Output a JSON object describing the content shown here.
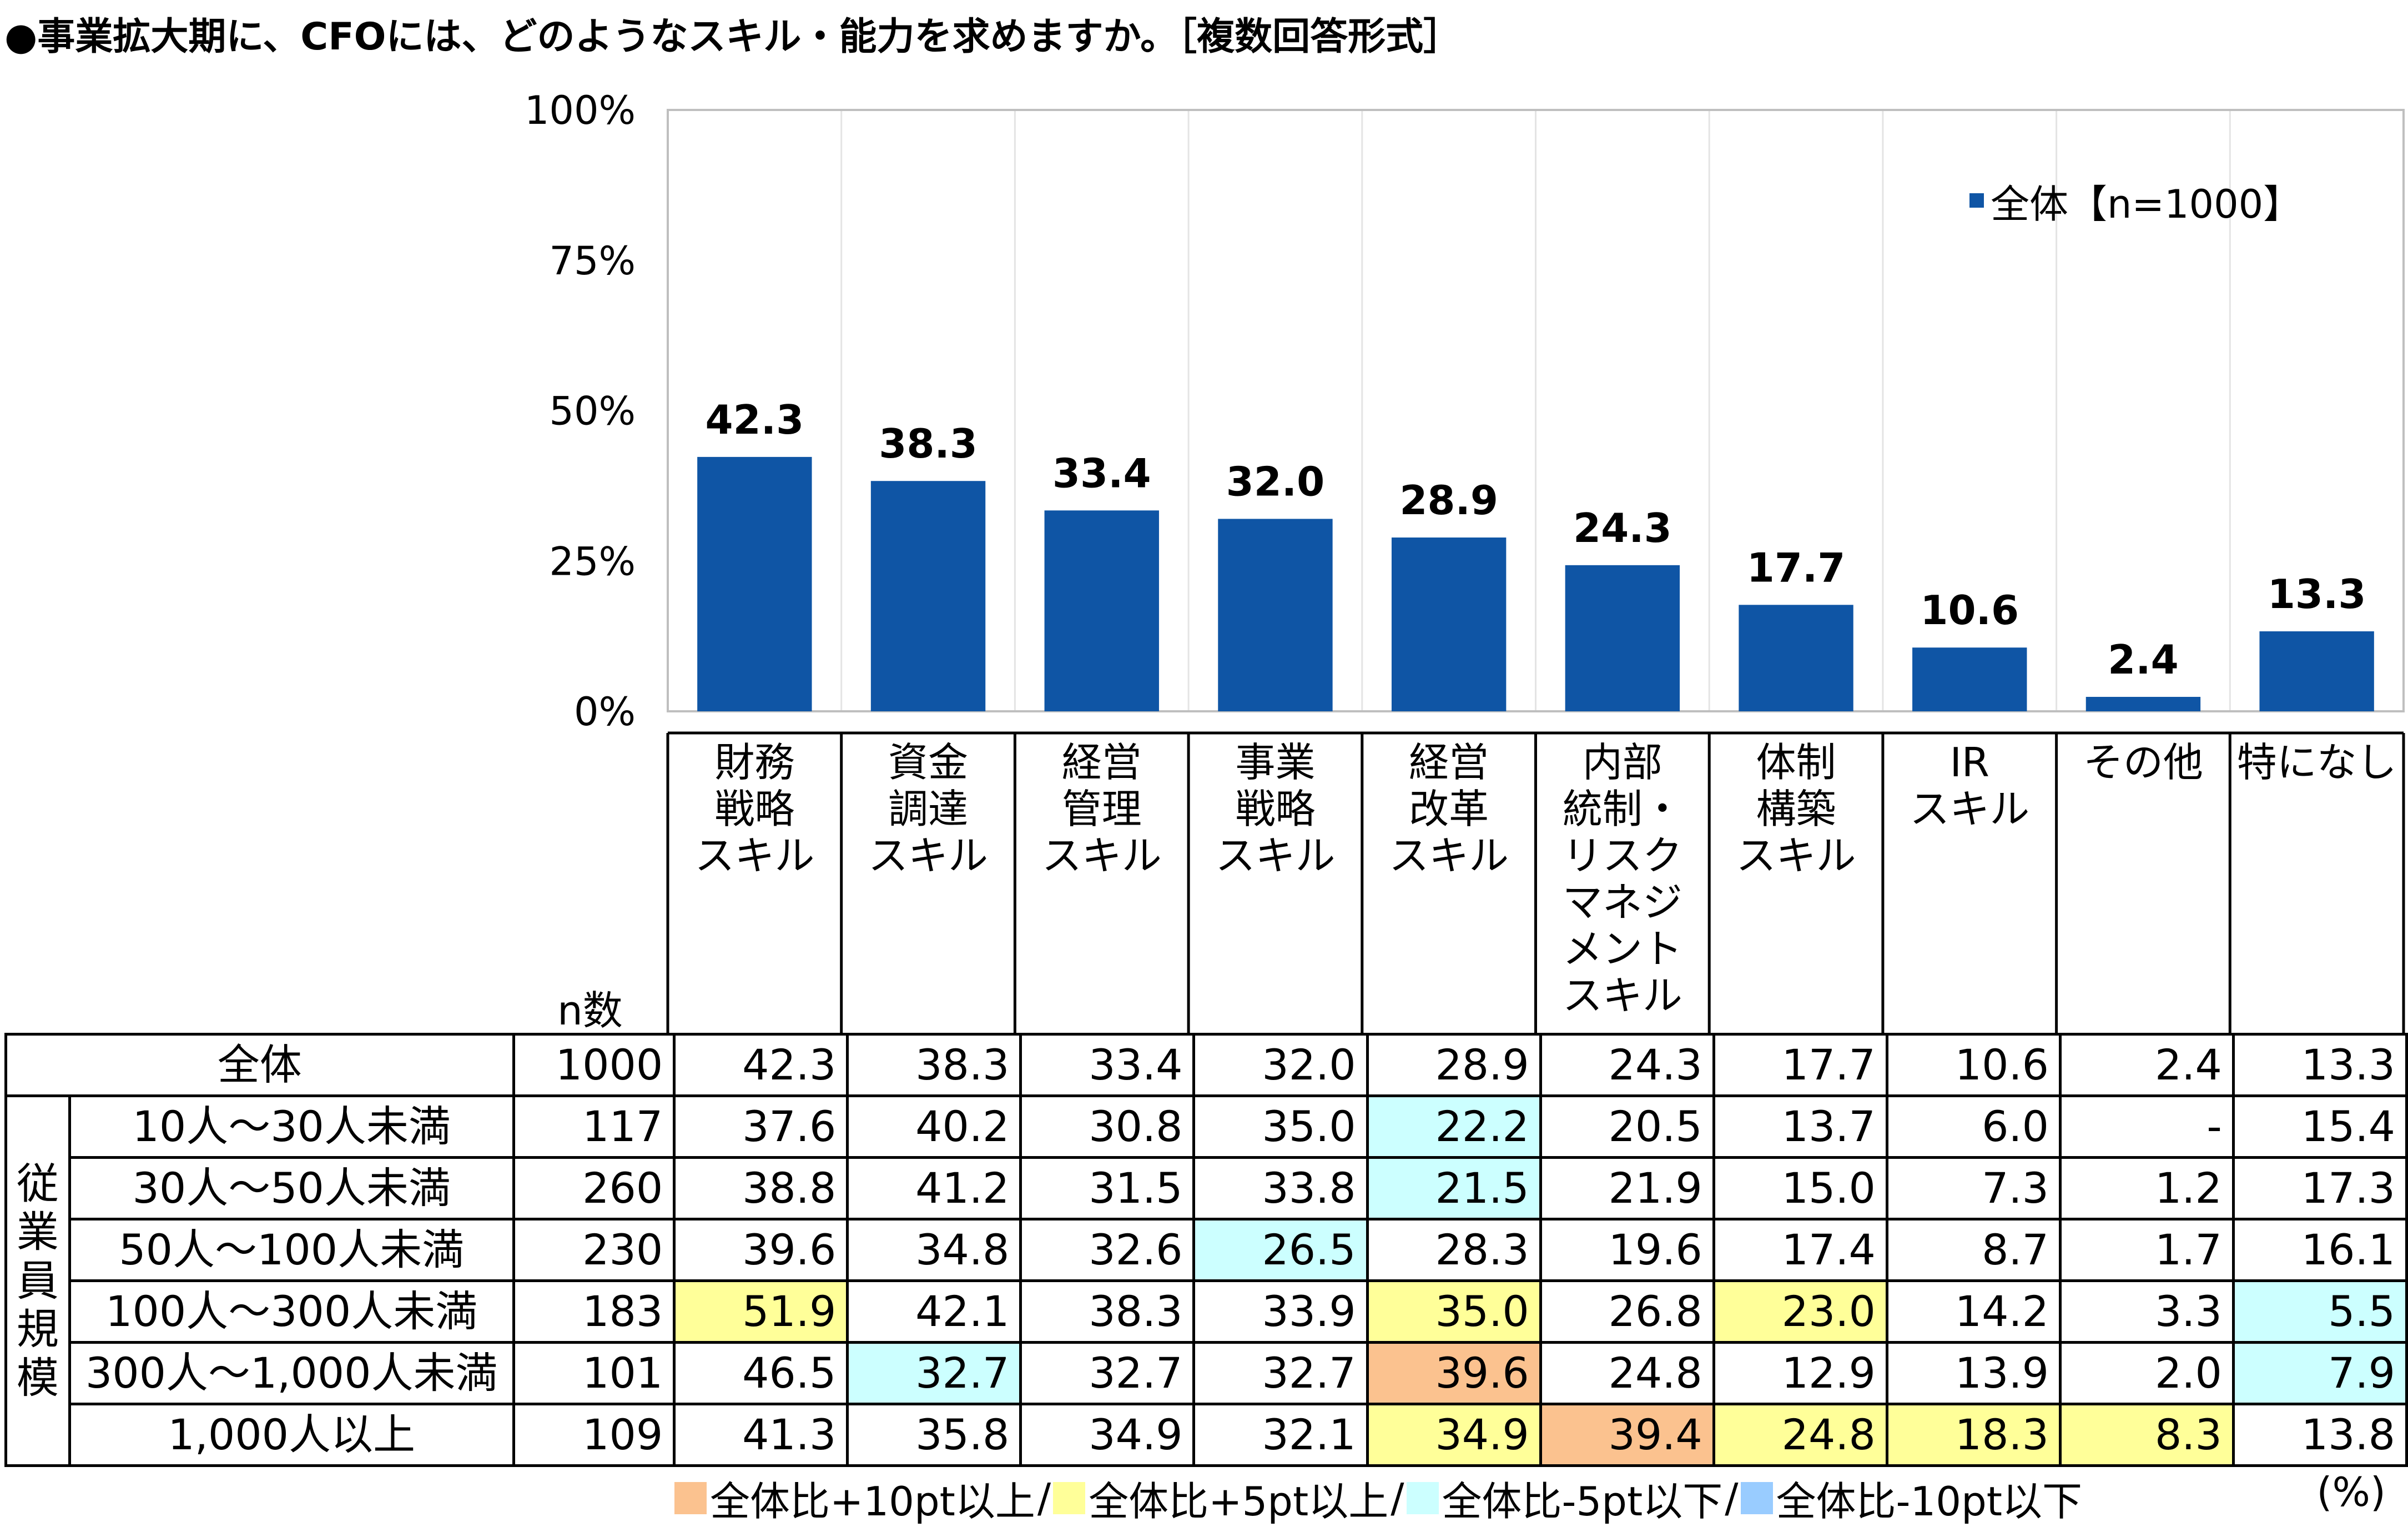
{
  "title": "●事業拡大期に、CFOには、どのようなスキル・能力を求めますか。［複数回答形式］",
  "chart_data": {
    "type": "bar",
    "categories": [
      [
        "財務",
        "戦略",
        "スキル"
      ],
      [
        "資金",
        "調達",
        "スキル"
      ],
      [
        "経営",
        "管理",
        "スキル"
      ],
      [
        "事業",
        "戦略",
        "スキル"
      ],
      [
        "経営",
        "改革",
        "スキル"
      ],
      [
        "内部",
        "統制・",
        "リスク",
        "マネジ",
        "メント",
        "スキル"
      ],
      [
        "体制",
        "構築",
        "スキル"
      ],
      [
        "IR",
        "スキル"
      ],
      [
        "その他"
      ],
      [
        "特になし"
      ]
    ],
    "series": [
      {
        "name": "全体【n=1000】",
        "values": [
          42.3,
          38.3,
          33.4,
          32.0,
          28.9,
          24.3,
          17.7,
          10.6,
          2.4,
          13.3
        ],
        "color": "#0f55a5"
      }
    ],
    "ylim": [
      0,
      100
    ],
    "yticks": [
      "0%",
      "25%",
      "50%",
      "75%",
      "100%"
    ],
    "grid": "vertical lines",
    "legend_position": "top-right"
  },
  "table": {
    "n_header": "n数",
    "total_row": {
      "label": "全体",
      "n": "1000",
      "values": [
        "42.3",
        "38.3",
        "33.4",
        "32.0",
        "28.9",
        "24.3",
        "17.7",
        "10.6",
        "2.4",
        "13.3"
      ]
    },
    "group_label": "従業員規模",
    "rows": [
      {
        "label": "10人～30人未満",
        "n": "117",
        "values": [
          "37.6",
          "40.2",
          "30.8",
          "35.0",
          "22.2",
          "20.5",
          "13.7",
          "6.0",
          "-",
          "15.4"
        ],
        "hl": [
          "",
          "",
          "",
          "",
          "m5",
          "",
          "",
          "",
          "",
          ""
        ]
      },
      {
        "label": "30人～50人未満",
        "n": "260",
        "values": [
          "38.8",
          "41.2",
          "31.5",
          "33.8",
          "21.5",
          "21.9",
          "15.0",
          "7.3",
          "1.2",
          "17.3"
        ],
        "hl": [
          "",
          "",
          "",
          "",
          "m5",
          "",
          "",
          "",
          "",
          ""
        ]
      },
      {
        "label": "50人～100人未満",
        "n": "230",
        "values": [
          "39.6",
          "34.8",
          "32.6",
          "26.5",
          "28.3",
          "19.6",
          "17.4",
          "8.7",
          "1.7",
          "16.1"
        ],
        "hl": [
          "",
          "",
          "",
          "m5",
          "",
          "",
          "",
          "",
          "",
          ""
        ]
      },
      {
        "label": "100人～300人未満",
        "n": "183",
        "values": [
          "51.9",
          "42.1",
          "38.3",
          "33.9",
          "35.0",
          "26.8",
          "23.0",
          "14.2",
          "3.3",
          "5.5"
        ],
        "hl": [
          "p5",
          "",
          "",
          "",
          "p5",
          "",
          "p5",
          "",
          "",
          "m5"
        ]
      },
      {
        "label": "300人～1,000人未満",
        "n": "101",
        "values": [
          "46.5",
          "32.7",
          "32.7",
          "32.7",
          "39.6",
          "24.8",
          "12.9",
          "13.9",
          "2.0",
          "7.9"
        ],
        "hl": [
          "",
          "m5",
          "",
          "",
          "p10",
          "",
          "",
          "",
          "",
          "m5"
        ]
      },
      {
        "label": "1,000人以上",
        "n": "109",
        "values": [
          "41.3",
          "35.8",
          "34.9",
          "32.1",
          "34.9",
          "39.4",
          "24.8",
          "18.3",
          "8.3",
          "13.8"
        ],
        "hl": [
          "",
          "",
          "",
          "",
          "p5",
          "p10",
          "p5",
          "p5",
          "p5",
          ""
        ]
      }
    ]
  },
  "legend": [
    {
      "label": "全体比+10pt以上",
      "color": "#fbc28f"
    },
    {
      "label": "全体比+5pt以上",
      "color": "#ffff99"
    },
    {
      "label": "全体比-5pt以下",
      "color": "#ccffff"
    },
    {
      "label": "全体比-10pt以下",
      "color": "#99ccff"
    }
  ],
  "unit": "(%)"
}
